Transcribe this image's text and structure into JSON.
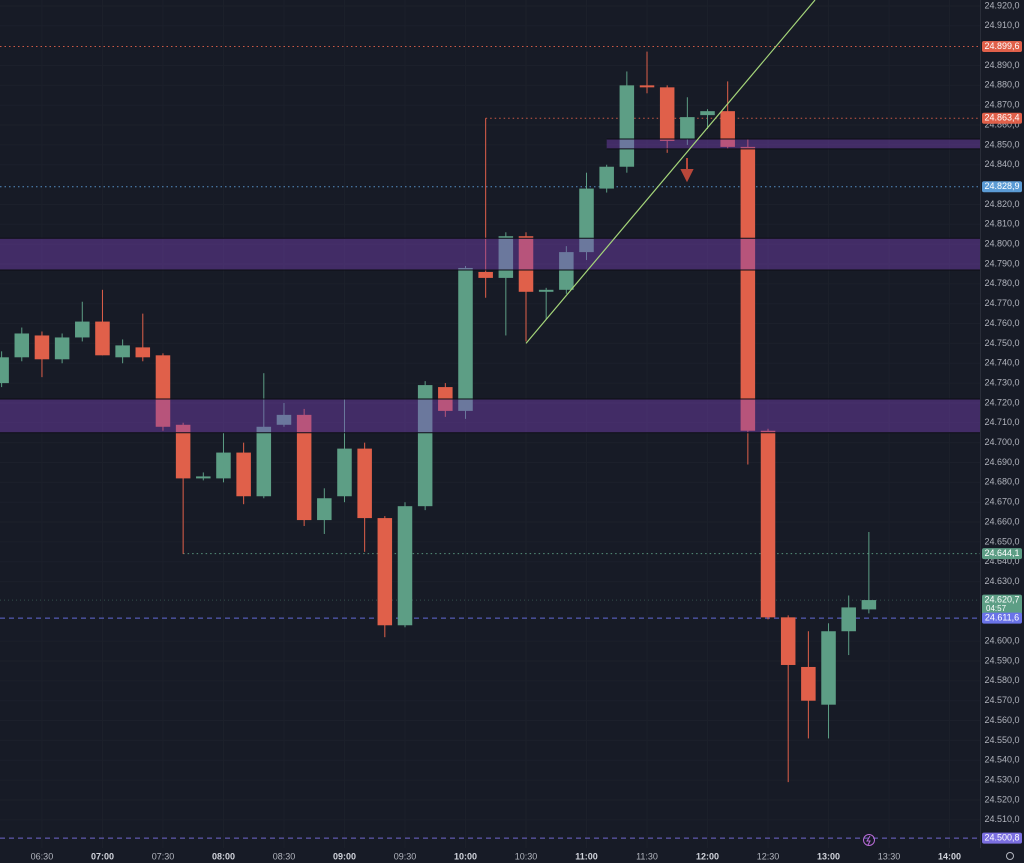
{
  "chart_data": {
    "type": "candlestick",
    "xlim": [
      369.2,
      855.1
    ],
    "ylim": [
      24495.8,
      24923.0
    ],
    "grid": true,
    "up_color": "#5d9e85",
    "down_color": "#e0604a",
    "xticks": [
      {
        "value": 390,
        "label": "06:30"
      },
      {
        "value": 420,
        "label": "07:00"
      },
      {
        "value": 450,
        "label": "07:30"
      },
      {
        "value": 480,
        "label": "08:00"
      },
      {
        "value": 510,
        "label": "08:30"
      },
      {
        "value": 540,
        "label": "09:00"
      },
      {
        "value": 570,
        "label": "09:30"
      },
      {
        "value": 600,
        "label": "10:00"
      },
      {
        "value": 630,
        "label": "10:30"
      },
      {
        "value": 660,
        "label": "11:00"
      },
      {
        "value": 690,
        "label": "11:30"
      },
      {
        "value": 720,
        "label": "12:00"
      },
      {
        "value": 750,
        "label": "12:30"
      },
      {
        "value": 780,
        "label": "13:00"
      },
      {
        "value": 810,
        "label": "13:30"
      },
      {
        "value": 840,
        "label": "14:00"
      }
    ],
    "yticks": [
      {
        "value": 24920,
        "label": "24.920,0"
      },
      {
        "value": 24910,
        "label": "24.910,0"
      },
      {
        "value": 24890,
        "label": "24.890,0"
      },
      {
        "value": 24880,
        "label": "24.880,0"
      },
      {
        "value": 24870,
        "label": "24.870,0"
      },
      {
        "value": 24860,
        "label": "24.860,0"
      },
      {
        "value": 24850,
        "label": "24.850,0"
      },
      {
        "value": 24840,
        "label": "24.840,0"
      },
      {
        "value": 24820,
        "label": "24.820,0"
      },
      {
        "value": 24810,
        "label": "24.810,0"
      },
      {
        "value": 24800,
        "label": "24.800,0"
      },
      {
        "value": 24790,
        "label": "24.790,0"
      },
      {
        "value": 24780,
        "label": "24.780,0"
      },
      {
        "value": 24770,
        "label": "24.770,0"
      },
      {
        "value": 24760,
        "label": "24.760,0"
      },
      {
        "value": 24750,
        "label": "24.750,0"
      },
      {
        "value": 24740,
        "label": "24.740,0"
      },
      {
        "value": 24730,
        "label": "24.730,0"
      },
      {
        "value": 24720,
        "label": "24.720,0"
      },
      {
        "value": 24710,
        "label": "24.710,0"
      },
      {
        "value": 24700,
        "label": "24.700,0"
      },
      {
        "value": 24690,
        "label": "24.690,0"
      },
      {
        "value": 24680,
        "label": "24.680,0"
      },
      {
        "value": 24670,
        "label": "24.670,0"
      },
      {
        "value": 24660,
        "label": "24.660,0"
      },
      {
        "value": 24650,
        "label": "24.650,0"
      },
      {
        "value": 24640,
        "label": "24.640,0"
      },
      {
        "value": 24630,
        "label": "24.630,0"
      },
      {
        "value": 24600,
        "label": "24.600,0"
      },
      {
        "value": 24590,
        "label": "24.590,0"
      },
      {
        "value": 24580,
        "label": "24.580,0"
      },
      {
        "value": 24570,
        "label": "24.570,0"
      },
      {
        "value": 24560,
        "label": "24.560,0"
      },
      {
        "value": 24550,
        "label": "24.550,0"
      },
      {
        "value": 24540,
        "label": "24.540,0"
      },
      {
        "value": 24530,
        "label": "24.530,0"
      },
      {
        "value": 24520,
        "label": "24.520,0"
      },
      {
        "value": 24510,
        "label": "24.510,0"
      }
    ],
    "candles": [
      {
        "x": 370,
        "open": 24730,
        "high": 24746,
        "low": 24728,
        "close": 24743
      },
      {
        "x": 380,
        "open": 24743,
        "high": 24758,
        "low": 24741,
        "close": 24755
      },
      {
        "x": 390,
        "open": 24754,
        "high": 24756,
        "low": 24733,
        "close": 24742
      },
      {
        "x": 400,
        "open": 24742,
        "high": 24755,
        "low": 24740,
        "close": 24753
      },
      {
        "x": 410,
        "open": 24753,
        "high": 24771,
        "low": 24751,
        "close": 24761
      },
      {
        "x": 420,
        "open": 24761,
        "high": 24777,
        "low": 24744,
        "close": 24744
      },
      {
        "x": 430,
        "open": 24743,
        "high": 24752,
        "low": 24740,
        "close": 24749
      },
      {
        "x": 440,
        "open": 24748,
        "high": 24765,
        "low": 24741,
        "close": 24743
      },
      {
        "x": 450,
        "open": 24744,
        "high": 24745,
        "low": 24706,
        "close": 24708
      },
      {
        "x": 460,
        "open": 24709,
        "high": 24710,
        "low": 24644,
        "close": 24682
      },
      {
        "x": 470,
        "open": 24682,
        "high": 24685,
        "low": 24681,
        "close": 24683
      },
      {
        "x": 480,
        "open": 24682,
        "high": 24705,
        "low": 24680,
        "close": 24695
      },
      {
        "x": 490,
        "open": 24695,
        "high": 24700,
        "low": 24669,
        "close": 24673
      },
      {
        "x": 500,
        "open": 24673,
        "high": 24735,
        "low": 24672,
        "close": 24708
      },
      {
        "x": 510,
        "open": 24709,
        "high": 24720,
        "low": 24708,
        "close": 24714
      },
      {
        "x": 520,
        "open": 24714,
        "high": 24717,
        "low": 24658,
        "close": 24661
      },
      {
        "x": 530,
        "open": 24661,
        "high": 24677,
        "low": 24654,
        "close": 24672
      },
      {
        "x": 540,
        "open": 24673,
        "high": 24722,
        "low": 24670,
        "close": 24697
      },
      {
        "x": 550,
        "open": 24697,
        "high": 24700,
        "low": 24645,
        "close": 24662
      },
      {
        "x": 560,
        "open": 24662,
        "high": 24663,
        "low": 24602,
        "close": 24608
      },
      {
        "x": 570,
        "open": 24608,
        "high": 24670,
        "low": 24607,
        "close": 24668
      },
      {
        "x": 580,
        "open": 24668,
        "high": 24731,
        "low": 24666,
        "close": 24729
      },
      {
        "x": 590,
        "open": 24728,
        "high": 24730,
        "low": 24713,
        "close": 24716
      },
      {
        "x": 600,
        "open": 24716,
        "high": 24789,
        "low": 24712,
        "close": 24788
      },
      {
        "x": 610,
        "open": 24786,
        "high": 24863.4,
        "low": 24773,
        "close": 24783
      },
      {
        "x": 620,
        "open": 24783,
        "high": 24806,
        "low": 24754,
        "close": 24804
      },
      {
        "x": 630,
        "open": 24804,
        "high": 24806,
        "low": 24751,
        "close": 24776
      },
      {
        "x": 640,
        "open": 24776,
        "high": 24778,
        "low": 24762,
        "close": 24777
      },
      {
        "x": 650,
        "open": 24777,
        "high": 24799,
        "low": 24775,
        "close": 24796
      },
      {
        "x": 660,
        "open": 24796,
        "high": 24836,
        "low": 24792,
        "close": 24828
      },
      {
        "x": 670,
        "open": 24828,
        "high": 24840,
        "low": 24826,
        "close": 24839
      },
      {
        "x": 680,
        "open": 24839,
        "high": 24887,
        "low": 24836,
        "close": 24880
      },
      {
        "x": 690,
        "open": 24880,
        "high": 24897,
        "low": 24876,
        "close": 24879
      },
      {
        "x": 700,
        "open": 24879,
        "high": 24880,
        "low": 24846,
        "close": 24852
      },
      {
        "x": 710,
        "open": 24853,
        "high": 24874,
        "low": 24850,
        "close": 24864
      },
      {
        "x": 720,
        "open": 24865,
        "high": 24868,
        "low": 24858,
        "close": 24867
      },
      {
        "x": 730,
        "open": 24867,
        "high": 24882,
        "low": 24848,
        "close": 24849
      },
      {
        "x": 740,
        "open": 24849,
        "high": 24853,
        "low": 24689,
        "close": 24706
      },
      {
        "x": 750,
        "open": 24706,
        "high": 24707,
        "low": 24611,
        "close": 24612
      },
      {
        "x": 760,
        "open": 24612,
        "high": 24613,
        "low": 24529,
        "close": 24588
      },
      {
        "x": 770,
        "open": 24587,
        "high": 24605,
        "low": 24551,
        "close": 24570
      },
      {
        "x": 780,
        "open": 24568,
        "high": 24609,
        "low": 24551,
        "close": 24605
      },
      {
        "x": 790,
        "open": 24605,
        "high": 24623,
        "low": 24593,
        "close": 24617
      },
      {
        "x": 800,
        "open": 24616,
        "high": 24655,
        "low": 24614,
        "close": 24620.7
      }
    ],
    "zones": [
      {
        "low": 24787,
        "high": 24803,
        "start": 369.2
      },
      {
        "low": 24705,
        "high": 24722,
        "start": 369.2
      },
      {
        "low": 24848,
        "high": 24853,
        "start": 670
      }
    ],
    "trend_line": {
      "from": {
        "x": 630,
        "y": 24750
      },
      "to": {
        "x": 773.3,
        "y": 24923
      }
    },
    "price_lines": [
      {
        "value": 24899.6,
        "label": "24.899,6",
        "color": "#e0604a",
        "style": "dotted",
        "start": 369.2
      },
      {
        "value": 24863.4,
        "label": "24.863,4",
        "color": "#e0604a",
        "style": "dotted",
        "start": 610
      },
      {
        "value": 24828.9,
        "label": "24.828,9",
        "color": "#5b9bd5",
        "style": "dotted",
        "start": 369.2
      },
      {
        "value": 24644.1,
        "label": "24.644,1",
        "color": "#5d9e85",
        "style": "dotted",
        "start": 460
      },
      {
        "value": 24620.7,
        "label": "24.620,7",
        "color": "#5d9e85",
        "style": "faint",
        "start": 369.2,
        "countdown": "04:57"
      },
      {
        "value": 24611.6,
        "label": "24.611,6",
        "color": "#6a73e8",
        "style": "dashed",
        "start": 369.2
      },
      {
        "value": 24500.8,
        "label": "24.500,8",
        "color": "#7b6fe0",
        "style": "dashed",
        "start": 369.2
      }
    ]
  }
}
